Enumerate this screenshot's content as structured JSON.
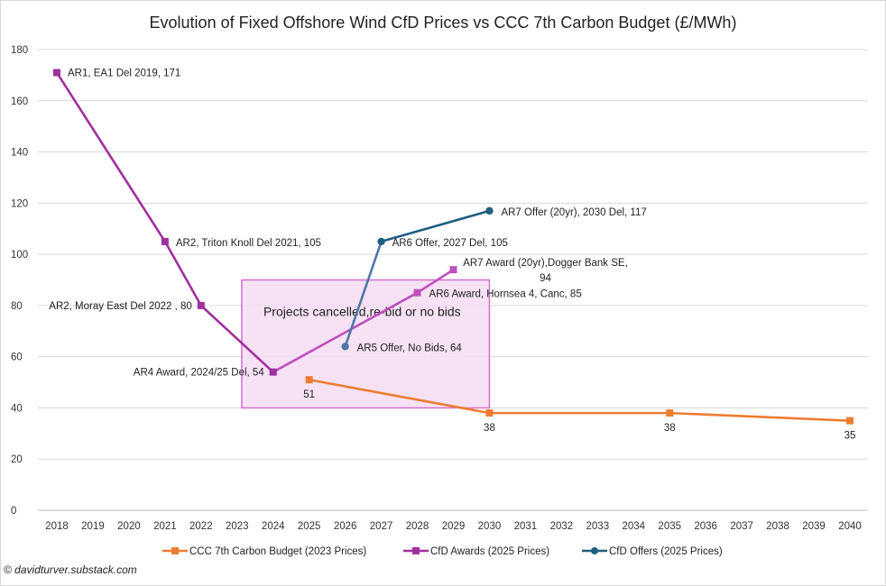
{
  "chart_data": {
    "type": "line",
    "title": "Evolution of Fixed Offshore Wind CfD Prices vs CCC 7th Carbon Budget (£/MWh)",
    "xlabel": "",
    "ylabel": "",
    "x_ticks": [
      2018,
      2019,
      2020,
      2021,
      2022,
      2023,
      2024,
      2025,
      2026,
      2027,
      2028,
      2029,
      2030,
      2031,
      2032,
      2033,
      2034,
      2035,
      2036,
      2037,
      2038,
      2039,
      2040
    ],
    "xlim": [
      2018,
      2040
    ],
    "ylim": [
      0,
      180
    ],
    "y_ticks": [
      0,
      20,
      40,
      60,
      80,
      100,
      120,
      140,
      160,
      180
    ],
    "grid": "horizontal",
    "legend_position": "bottom",
    "series": [
      {
        "name": "CCC 7th Carbon Budget (2023 Prices)",
        "color": "#ED7D31",
        "marker": "square",
        "x": [
          2025,
          2030,
          2035,
          2040
        ],
        "y": [
          51,
          38,
          38,
          35
        ],
        "labels": [
          "51",
          "38",
          "38",
          "35"
        ]
      },
      {
        "name": "CfD Awards (2025 Prices)",
        "color": "#A0309E",
        "color_light": "#C050BE",
        "marker": "square",
        "x": [
          2018,
          2021,
          2022,
          2024,
          2028,
          2029
        ],
        "y": [
          171,
          105,
          80,
          54,
          85,
          94
        ],
        "labels": [
          "AR1, EA1 Del 2019,  171",
          "AR2, Triton Knoll Del 2021,  105",
          "AR2, Moray East Del 2022 ,  80",
          "AR4 Award, 2024/25 Del,  54",
          "AR6 Award, Hornsea 4, Canc,  85",
          "AR7 Award (20yr),Dogger Bank SE,\n94"
        ]
      },
      {
        "name": "CfD Offers (2025 Prices)",
        "color": "#1F5F80",
        "color_first": "#4F77A8",
        "marker": "circle",
        "x": [
          2026,
          2027,
          2030
        ],
        "y": [
          64,
          105,
          117
        ],
        "labels": [
          "AR5 Offer, No Bids,  64",
          "AR6 Offer, 2027 Del,  105",
          "AR7 Offer (20yr), 2030 Del,  117"
        ]
      }
    ],
    "annotations": [
      {
        "text": "Projects cancelled,re-bid or no bids",
        "x_range": [
          2023.13,
          2030
        ],
        "y_range": [
          40,
          90
        ],
        "fill": "#F5DDF2",
        "border": "#D36FD0"
      }
    ]
  },
  "credit": "© davidturver.substack.com"
}
